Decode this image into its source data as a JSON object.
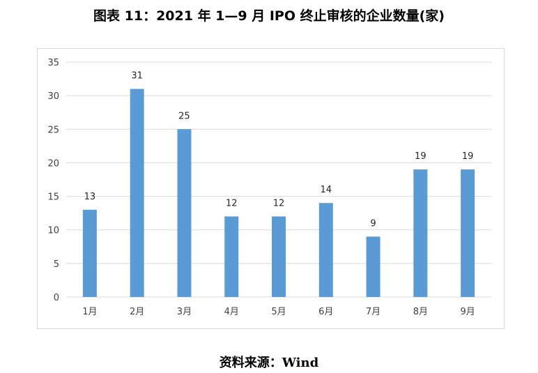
{
  "title": "图表 11：2021 年 1—9 月 IPO 终止审核的企业数量(家)",
  "source": "资料来源：Wind",
  "chart_data": {
    "type": "bar",
    "categories": [
      "1月",
      "2月",
      "3月",
      "4月",
      "5月",
      "6月",
      "7月",
      "8月",
      "9月"
    ],
    "values": [
      13,
      31,
      25,
      12,
      12,
      14,
      9,
      19,
      19
    ],
    "ylim": [
      0,
      35
    ],
    "yticks": [
      0,
      5,
      10,
      15,
      20,
      25,
      30,
      35
    ],
    "grid": true,
    "bar_color": "#5b9bd5",
    "data_labels": true
  }
}
